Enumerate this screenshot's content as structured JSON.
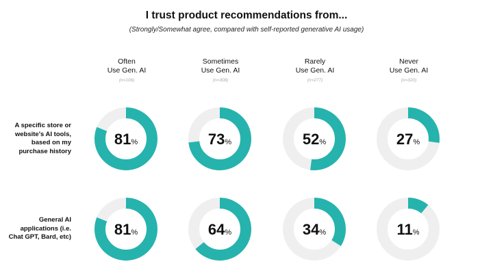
{
  "chart_data": {
    "type": "donut-grid",
    "title": "I trust product recommendations from...",
    "subtitle": "(Strongly/Somewhat agree, compared with self-reported generative AI usage)",
    "columns": [
      {
        "line1": "Often",
        "line2": "Use Gen. AI",
        "n": "(n=106)"
      },
      {
        "line1": "Sometimes",
        "line2": "Use Gen. AI",
        "n": "(n=308)"
      },
      {
        "line1": "Rarely",
        "line2": "Use Gen. AI",
        "n": "(n=277)"
      },
      {
        "line1": "Never",
        "line2": "Use Gen. AI",
        "n": "(n=320)"
      }
    ],
    "rows": [
      {
        "label_lines": [
          "A specific store or",
          "website's AI tools,",
          "based on my",
          "purchase history"
        ],
        "values": [
          81,
          73,
          52,
          27
        ]
      },
      {
        "label_lines": [
          "General AI",
          "applications (i.e.",
          "Chat GPT, Bard, etc)"
        ],
        "values": [
          81,
          64,
          34,
          11
        ]
      }
    ],
    "value_suffix": "%",
    "colors": {
      "fill": "#26b3ad",
      "track": "#efefef"
    }
  }
}
